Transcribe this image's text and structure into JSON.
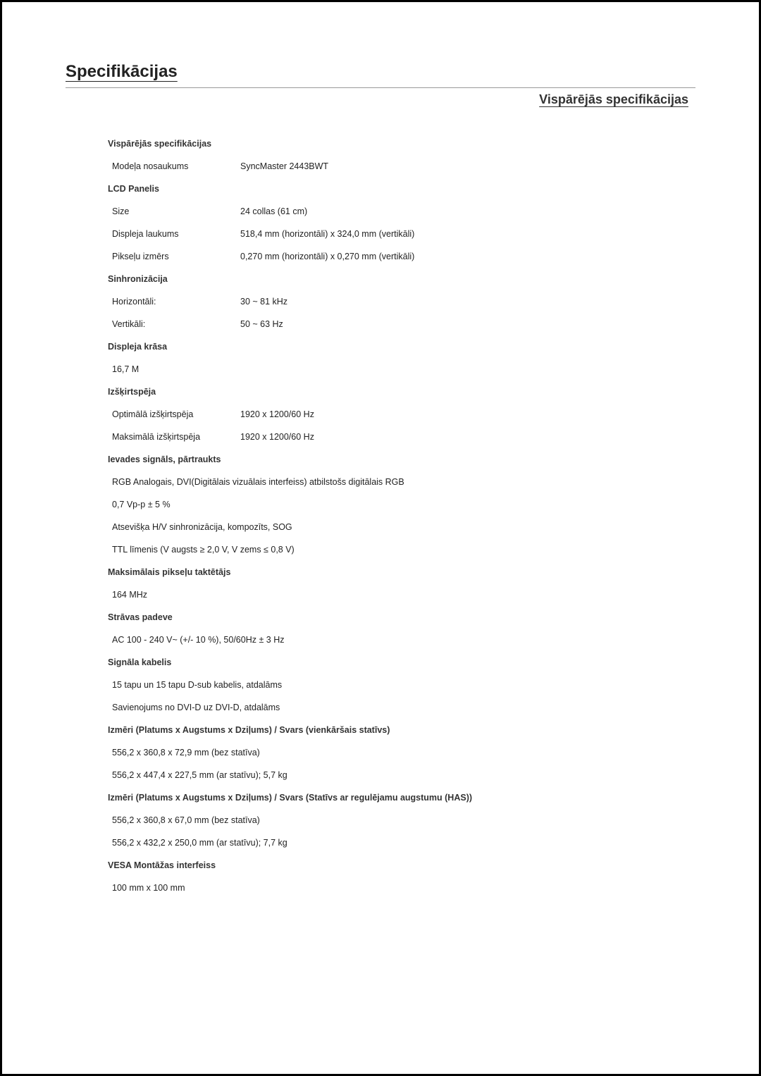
{
  "main_title": "Specifikācijas",
  "section_title": "Vispārējās specifikācijas",
  "groups": [
    {
      "header": "Vispārējās specifikācijas",
      "rows": [
        {
          "label": "Modeļa nosaukums",
          "value": "SyncMaster 2443BWT"
        }
      ]
    },
    {
      "header": "LCD Panelis",
      "rows": [
        {
          "label": "Size",
          "value": "24 collas (61 cm)"
        },
        {
          "label": "Displeja laukums",
          "value": "518,4 mm (horizontāli) x 324,0 mm (vertikāli)"
        },
        {
          "label": "Pikseļu izmērs",
          "value": "0,270 mm (horizontāli) x 0,270 mm (vertikāli)"
        }
      ]
    },
    {
      "header": "Sinhronizācija",
      "rows": [
        {
          "label": "Horizontāli:",
          "value": " 30 ~ 81 kHz"
        },
        {
          "label": "Vertikāli:",
          "value": " 50 ~ 63 Hz"
        }
      ]
    },
    {
      "header": "Displeja krāsa",
      "rows": [
        {
          "single": "16,7 M"
        }
      ]
    },
    {
      "header": "Izšķirtspēja",
      "rows": [
        {
          "label": "Optimālā izšķirtspēja",
          "value": "1920 x 1200/60 Hz"
        },
        {
          "label": "Maksimālā izšķirtspēja",
          "value": "1920 x 1200/60 Hz"
        }
      ]
    },
    {
      "header": "Ievades signāls, pārtraukts",
      "rows": [
        {
          "single": "RGB Analogais, DVI(Digitālais vizuālais interfeiss) atbilstošs digitālais RGB"
        },
        {
          "single": "0,7 Vp-p ± 5 %"
        },
        {
          "single": "Atsevišķa H/V sinhronizācija, kompozīts, SOG"
        },
        {
          "single": "TTL līmenis (V augsts ≥ 2,0 V, V zems ≤ 0,8 V)"
        }
      ]
    },
    {
      "header": "Maksimālais pikseļu taktētājs",
      "rows": [
        {
          "single": "164 MHz"
        }
      ]
    },
    {
      "header": "Strāvas padeve",
      "rows": [
        {
          "single": "AC 100 - 240 V~ (+/- 10 %), 50/60Hz ± 3 Hz"
        }
      ]
    },
    {
      "header": "Signāla kabelis",
      "rows": [
        {
          "single": "15 tapu un 15 tapu D-sub kabelis, atdalāms"
        },
        {
          "single": "Savienojums no DVI-D uz DVI-D, atdalāms"
        }
      ]
    },
    {
      "header": "Izmēri (Platums x Augstums x Dziļums) / Svars (vienkāršais statīvs)",
      "rows": [
        {
          "single": "556,2 x 360,8 x 72,9 mm (bez statīva)"
        },
        {
          "single": "556,2 x 447,4 x 227,5 mm (ar statīvu); 5,7 kg"
        }
      ]
    },
    {
      "header": "Izmēri (Platums x Augstums x Dziļums) / Svars (Statīvs ar regulējamu augstumu (HAS))",
      "rows": [
        {
          "single": "556,2 x 360,8 x 67,0 mm (bez statīva)"
        },
        {
          "single": "556,2 x 432,2 x 250,0 mm (ar statīvu); 7,7 kg"
        }
      ]
    },
    {
      "header": "VESA Montāžas interfeiss",
      "rows": [
        {
          "single": "100 mm x 100 mm"
        }
      ]
    }
  ]
}
